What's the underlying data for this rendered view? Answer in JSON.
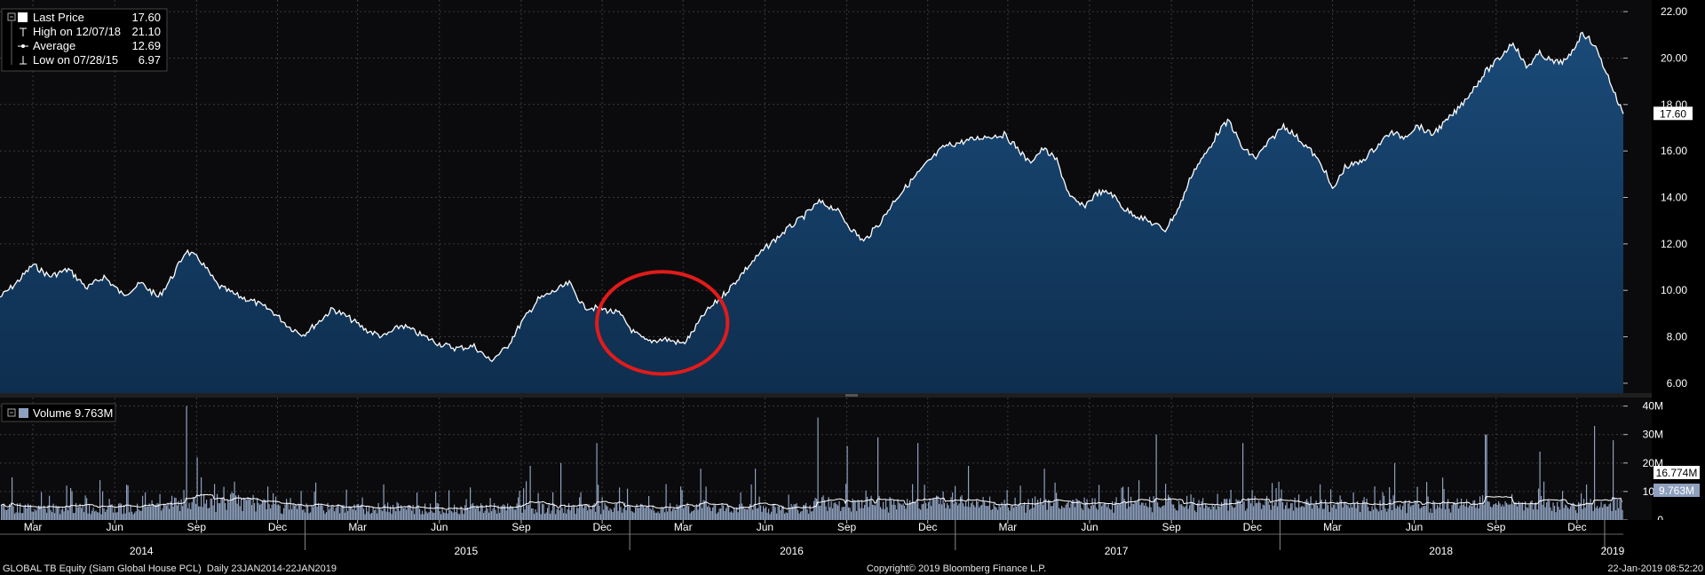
{
  "legend_price": {
    "items": [
      {
        "label": "Last Price",
        "value": "17.60",
        "marker": "white-square"
      },
      {
        "label": "High on 12/07/18",
        "value": "21.10",
        "marker": "high-tick"
      },
      {
        "label": "Average",
        "value": "12.69",
        "marker": "average-dash"
      },
      {
        "label": "Low on 07/28/15",
        "value": "6.97",
        "marker": "low-tick"
      }
    ]
  },
  "legend_volume": {
    "label": "Volume",
    "value": "9.763M"
  },
  "price_axis": {
    "ticks": [
      "22.00",
      "20.00",
      "18.00",
      "16.00",
      "14.00",
      "12.00",
      "10.00",
      "8.00",
      "6.00"
    ],
    "last_badge": "17.60"
  },
  "volume_axis": {
    "ticks": [
      "40M",
      "30M",
      "20M",
      "10M",
      "0"
    ],
    "badge_avg": "16.774M",
    "badge_last": "9.763M"
  },
  "x_axis": {
    "months": [
      {
        "label": "Mar",
        "date": "2014-03-01"
      },
      {
        "label": "Jun",
        "date": "2014-06-01"
      },
      {
        "label": "Sep",
        "date": "2014-09-01"
      },
      {
        "label": "Dec",
        "date": "2014-12-01"
      },
      {
        "label": "Mar",
        "date": "2015-03-01"
      },
      {
        "label": "Jun",
        "date": "2015-06-01"
      },
      {
        "label": "Sep",
        "date": "2015-09-01"
      },
      {
        "label": "Dec",
        "date": "2015-12-01"
      },
      {
        "label": "Mar",
        "date": "2016-03-01"
      },
      {
        "label": "Jun",
        "date": "2016-06-01"
      },
      {
        "label": "Sep",
        "date": "2016-09-01"
      },
      {
        "label": "Dec",
        "date": "2016-12-01"
      },
      {
        "label": "Mar",
        "date": "2017-03-01"
      },
      {
        "label": "Jun",
        "date": "2017-06-01"
      },
      {
        "label": "Sep",
        "date": "2017-09-01"
      },
      {
        "label": "Dec",
        "date": "2017-12-01"
      },
      {
        "label": "Mar",
        "date": "2018-03-01"
      },
      {
        "label": "Jun",
        "date": "2018-06-01"
      },
      {
        "label": "Sep",
        "date": "2018-09-01"
      },
      {
        "label": "Dec",
        "date": "2018-12-01"
      }
    ],
    "years": [
      {
        "label": "2014",
        "date": "2014-07-01"
      },
      {
        "label": "2015",
        "date": "2015-07-01"
      },
      {
        "label": "2016",
        "date": "2016-07-01"
      },
      {
        "label": "2017",
        "date": "2017-07-01"
      },
      {
        "label": "2018",
        "date": "2018-07-01"
      },
      {
        "label": "2019",
        "date": "2019-01-10"
      }
    ]
  },
  "footer": {
    "left": "GLOBAL TB Equity (Siam Global House PCL)  Daily 23JAN2014-22JAN2019",
    "center": "Copyright© 2019 Bloomberg Finance L.P.",
    "right": "22-Jan-2019 08:52:20"
  },
  "colors": {
    "background": "#000000",
    "price_line": "#ffffff",
    "price_fill": "#0e2e4e",
    "volume_bar": "#8ea0be",
    "volume_avg_line": "#ffffff",
    "grid": "#3a3a3a",
    "annotation_circle": "#e11b1b"
  },
  "chart_data": [
    {
      "type": "area",
      "ylim": [
        5.5,
        22.5
      ],
      "grid": true,
      "x_range": [
        "2014-01-23",
        "2019-01-22"
      ],
      "series": [
        {
          "name": "Last Price",
          "points": [
            [
              "2014-01-23",
              9.7
            ],
            [
              "2014-02-10",
              10.3
            ],
            [
              "2014-03-01",
              11.1
            ],
            [
              "2014-03-20",
              10.6
            ],
            [
              "2014-04-10",
              10.9
            ],
            [
              "2014-05-01",
              10.1
            ],
            [
              "2014-05-20",
              10.6
            ],
            [
              "2014-06-10",
              9.8
            ],
            [
              "2014-07-01",
              10.3
            ],
            [
              "2014-07-20",
              9.7
            ],
            [
              "2014-08-05",
              10.6
            ],
            [
              "2014-08-20",
              11.7
            ],
            [
              "2014-09-05",
              11.3
            ],
            [
              "2014-09-25",
              10.2
            ],
            [
              "2014-10-15",
              9.8
            ],
            [
              "2014-11-05",
              9.5
            ],
            [
              "2014-11-25",
              9.1
            ],
            [
              "2014-12-15",
              8.4
            ],
            [
              "2014-12-30",
              8.1
            ],
            [
              "2015-01-15",
              8.6
            ],
            [
              "2015-02-01",
              9.2
            ],
            [
              "2015-02-20",
              8.8
            ],
            [
              "2015-03-10",
              8.3
            ],
            [
              "2015-03-30",
              8.0
            ],
            [
              "2015-04-20",
              8.5
            ],
            [
              "2015-05-10",
              8.1
            ],
            [
              "2015-06-01",
              7.7
            ],
            [
              "2015-06-20",
              7.5
            ],
            [
              "2015-07-10",
              7.6
            ],
            [
              "2015-07-28",
              6.97
            ],
            [
              "2015-08-15",
              7.5
            ],
            [
              "2015-09-01",
              8.6
            ],
            [
              "2015-09-20",
              9.6
            ],
            [
              "2015-10-10",
              10.0
            ],
            [
              "2015-10-25",
              10.3
            ],
            [
              "2015-11-10",
              9.3
            ],
            [
              "2015-12-01",
              9.2
            ],
            [
              "2015-12-20",
              9.0
            ],
            [
              "2016-01-05",
              8.2
            ],
            [
              "2016-01-20",
              7.8
            ],
            [
              "2016-02-10",
              7.9
            ],
            [
              "2016-03-01",
              7.7
            ],
            [
              "2016-03-10",
              8.1
            ],
            [
              "2016-03-25",
              9.0
            ],
            [
              "2016-04-10",
              9.6
            ],
            [
              "2016-04-25",
              10.2
            ],
            [
              "2016-05-10",
              10.9
            ],
            [
              "2016-06-01",
              11.8
            ],
            [
              "2016-06-25",
              12.6
            ],
            [
              "2016-07-15",
              13.2
            ],
            [
              "2016-08-01",
              13.8
            ],
            [
              "2016-08-20",
              13.5
            ],
            [
              "2016-09-05",
              12.7
            ],
            [
              "2016-09-20",
              12.1
            ],
            [
              "2016-10-10",
              13.0
            ],
            [
              "2016-10-25",
              13.9
            ],
            [
              "2016-11-10",
              14.6
            ],
            [
              "2016-12-01",
              15.5
            ],
            [
              "2016-12-20",
              16.2
            ],
            [
              "2017-01-10",
              16.4
            ],
            [
              "2017-02-01",
              16.6
            ],
            [
              "2017-02-25",
              16.7
            ],
            [
              "2017-03-10",
              16.2
            ],
            [
              "2017-03-25",
              15.5
            ],
            [
              "2017-04-10",
              16.1
            ],
            [
              "2017-04-25",
              15.6
            ],
            [
              "2017-05-10",
              14.0
            ],
            [
              "2017-05-25",
              13.6
            ],
            [
              "2017-06-10",
              14.2
            ],
            [
              "2017-06-25",
              14.2
            ],
            [
              "2017-07-10",
              13.5
            ],
            [
              "2017-07-25",
              13.2
            ],
            [
              "2017-08-10",
              12.9
            ],
            [
              "2017-08-25",
              12.6
            ],
            [
              "2017-09-10",
              13.6
            ],
            [
              "2017-09-25",
              15.1
            ],
            [
              "2017-10-10",
              15.9
            ],
            [
              "2017-10-25",
              16.9
            ],
            [
              "2017-11-05",
              17.3
            ],
            [
              "2017-11-20",
              16.1
            ],
            [
              "2017-12-05",
              15.7
            ],
            [
              "2017-12-20",
              16.4
            ],
            [
              "2018-01-05",
              17.1
            ],
            [
              "2018-01-20",
              16.6
            ],
            [
              "2018-02-05",
              16.0
            ],
            [
              "2018-02-20",
              15.2
            ],
            [
              "2018-03-01",
              14.3
            ],
            [
              "2018-03-15",
              15.3
            ],
            [
              "2018-04-01",
              15.5
            ],
            [
              "2018-04-20",
              16.2
            ],
            [
              "2018-05-05",
              16.8
            ],
            [
              "2018-05-20",
              16.6
            ],
            [
              "2018-06-05",
              17.1
            ],
            [
              "2018-06-20",
              16.7
            ],
            [
              "2018-07-05",
              17.2
            ],
            [
              "2018-07-20",
              17.8
            ],
            [
              "2018-08-05",
              18.6
            ],
            [
              "2018-08-20",
              19.4
            ],
            [
              "2018-09-05",
              20.0
            ],
            [
              "2018-09-20",
              20.7
            ],
            [
              "2018-10-05",
              19.6
            ],
            [
              "2018-10-20",
              20.2
            ],
            [
              "2018-11-05",
              19.8
            ],
            [
              "2018-11-20",
              19.9
            ],
            [
              "2018-12-07",
              21.1
            ],
            [
              "2018-12-20",
              20.6
            ],
            [
              "2019-01-05",
              19.2
            ],
            [
              "2019-01-15",
              18.2
            ],
            [
              "2019-01-22",
              17.6
            ]
          ]
        }
      ],
      "annotations": [
        {
          "shape": "ellipse",
          "x_range": [
            "2015-11-25",
            "2016-04-20"
          ],
          "y_range": [
            6.4,
            10.8
          ]
        }
      ]
    },
    {
      "type": "bar",
      "ylim": [
        0,
        43
      ],
      "unit": "M",
      "grid": true,
      "series": [
        {
          "name": "Volume",
          "values_note": "daily bars, typical 4-10M with spikes up to ~40M",
          "spikes": [
            [
              "2014-02-05",
              15
            ],
            [
              "2014-05-15",
              14
            ],
            [
              "2014-08-20",
              40
            ],
            [
              "2014-09-01",
              22
            ],
            [
              "2015-09-10",
              19
            ],
            [
              "2015-10-15",
              20
            ],
            [
              "2015-11-25",
              27
            ],
            [
              "2016-03-20",
              18
            ],
            [
              "2016-05-20",
              18
            ],
            [
              "2016-07-30",
              36
            ],
            [
              "2016-09-01",
              26
            ],
            [
              "2016-10-05",
              29
            ],
            [
              "2016-11-20",
              27
            ],
            [
              "2017-01-15",
              19
            ],
            [
              "2017-04-10",
              18
            ],
            [
              "2017-08-15",
              30
            ],
            [
              "2017-11-20",
              27
            ],
            [
              "2018-05-10",
              20
            ],
            [
              "2018-08-20",
              30
            ],
            [
              "2018-10-20",
              24
            ],
            [
              "2018-12-20",
              33
            ],
            [
              "2019-01-10",
              28
            ]
          ]
        },
        {
          "name": "16.774M",
          "type": "line",
          "values_note": "moving average of volume"
        }
      ]
    }
  ]
}
